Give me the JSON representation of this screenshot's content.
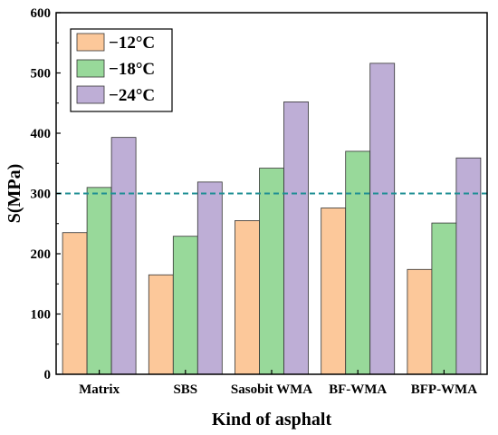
{
  "chart_data": {
    "type": "bar",
    "categories": [
      "Matrix",
      "SBS",
      "Sasobit WMA",
      "BF-WMA",
      "BFP-WMA"
    ],
    "series": [
      {
        "name": "−12°C",
        "values": [
          235,
          165,
          255,
          276,
          174
        ],
        "color": "#FCC89A"
      },
      {
        "name": "−18°C",
        "values": [
          310,
          229,
          342,
          370,
          251
        ],
        "color": "#98D99A"
      },
      {
        "name": "−24°C",
        "values": [
          393,
          319,
          452,
          516,
          359
        ],
        "color": "#BEAED6"
      }
    ],
    "xlabel": "Kind of asphalt",
    "ylabel": "S(MPa)",
    "ylim": [
      0,
      600
    ],
    "yticks": [
      "0",
      "100",
      "200",
      "300",
      "400",
      "500",
      "600"
    ],
    "reference_line": {
      "y": 300,
      "style": "dashed",
      "color": "#1F8F94"
    },
    "legend_position": "top-left",
    "grid": false
  }
}
